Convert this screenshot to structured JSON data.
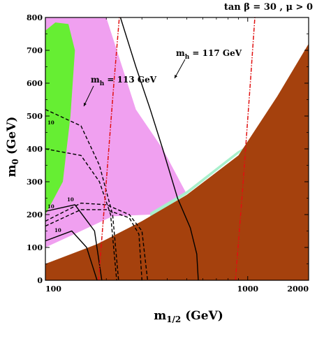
{
  "chart_data": {
    "type": "contour",
    "title_text": "tan β = 30 ,  μ > 0",
    "xlabel": {
      "main": "m",
      "sub": "1/2",
      "unit": " (GeV)"
    },
    "ylabel": {
      "main": "m",
      "sub": "0",
      "unit": " (GeV)"
    },
    "xscale": "log",
    "xlim": [
      100,
      2000
    ],
    "ylim": [
      0,
      800
    ],
    "xticks": [
      100,
      1000,
      2000
    ],
    "xtick_labels": [
      "100",
      "1000",
      "2000"
    ],
    "yticks": [
      0,
      100,
      200,
      300,
      400,
      500,
      600,
      700,
      800
    ],
    "ytick_labels": [
      "0",
      "100",
      "200",
      "300",
      "400",
      "500",
      "600",
      "700",
      "800"
    ],
    "colors": {
      "stau_lsp": "#a5410d",
      "g_minus_2": "#f0a0f0",
      "b_s_gamma": "#66ee33",
      "relic": "#a8f0cc",
      "higgs": "#e01010",
      "contour": "#000000"
    },
    "regions": {
      "stau_lsp": [
        [
          100,
          50
        ],
        [
          180,
          110
        ],
        [
          300,
          180
        ],
        [
          500,
          260
        ],
        [
          900,
          380
        ],
        [
          1400,
          560
        ],
        [
          2000,
          720
        ],
        [
          2000,
          0
        ],
        [
          100,
          0
        ]
      ],
      "relic_band": [
        [
          330,
          192
        ],
        [
          500,
          262
        ],
        [
          900,
          385
        ],
        [
          1000,
          410
        ],
        [
          890,
          392
        ],
        [
          500,
          272
        ],
        [
          330,
          206
        ]
      ],
      "g_minus_2": [
        [
          100,
          800
        ],
        [
          200,
          800
        ],
        [
          280,
          520
        ],
        [
          380,
          400
        ],
        [
          500,
          262
        ],
        [
          330,
          200
        ],
        [
          215,
          195
        ],
        [
          150,
          150
        ],
        [
          100,
          100
        ]
      ],
      "b_s_gamma": [
        [
          100,
          200
        ],
        [
          122,
          300
        ],
        [
          133,
          500
        ],
        [
          140,
          700
        ],
        [
          130,
          780
        ],
        [
          112,
          785
        ],
        [
          100,
          760
        ]
      ]
    },
    "higgs_lines": [
      {
        "label": "113 GeV",
        "points": [
          [
            183,
            0
          ],
          [
            200,
            300
          ],
          [
            218,
            600
          ],
          [
            232,
            800
          ]
        ]
      },
      {
        "label": "117 GeV",
        "points": [
          [
            870,
            0
          ],
          [
            950,
            300
          ],
          [
            1030,
            600
          ],
          [
            1085,
            800
          ]
        ]
      }
    ],
    "solid_contours": [
      {
        "name": "g-2 outer",
        "points": [
          [
            570,
            0
          ],
          [
            560,
            80
          ],
          [
            520,
            160
          ],
          [
            450,
            250
          ],
          [
            380,
            400
          ],
          [
            330,
            520
          ],
          [
            280,
            650
          ],
          [
            235,
            800
          ]
        ]
      },
      {
        "name": "solid-1",
        "points": [
          [
            100,
            120
          ],
          [
            135,
            150
          ],
          [
            160,
            100
          ],
          [
            180,
            0
          ]
        ]
      },
      {
        "name": "solid-2",
        "points": [
          [
            100,
            210
          ],
          [
            140,
            230
          ],
          [
            175,
            150
          ],
          [
            190,
            0
          ]
        ]
      }
    ],
    "dashed_contours": [
      {
        "name": "dashed-1",
        "points": [
          [
            100,
            520
          ],
          [
            150,
            470
          ],
          [
            185,
            350
          ],
          [
            215,
            200
          ],
          [
            230,
            0
          ]
        ]
      },
      {
        "name": "dashed-2",
        "points": [
          [
            100,
            400
          ],
          [
            150,
            380
          ],
          [
            185,
            300
          ],
          [
            210,
            200
          ],
          [
            225,
            0
          ]
        ]
      },
      {
        "name": "dashed-3",
        "points": [
          [
            100,
            180
          ],
          [
            150,
            235
          ],
          [
            200,
            230
          ],
          [
            260,
            200
          ],
          [
            300,
            150
          ],
          [
            320,
            0
          ]
        ]
      },
      {
        "name": "dashed-4",
        "points": [
          [
            100,
            165
          ],
          [
            150,
            215
          ],
          [
            200,
            215
          ],
          [
            260,
            190
          ],
          [
            290,
            140
          ],
          [
            300,
            0
          ]
        ]
      }
    ],
    "annotations": {
      "mh_113": {
        "main": "m",
        "sub": "h",
        "rest": " = 113 GeV"
      },
      "mh_117": {
        "main": "m",
        "sub": "h",
        "rest": " = 117 GeV"
      }
    },
    "contour_labels": [
      "10",
      "10",
      "10",
      "10"
    ]
  }
}
